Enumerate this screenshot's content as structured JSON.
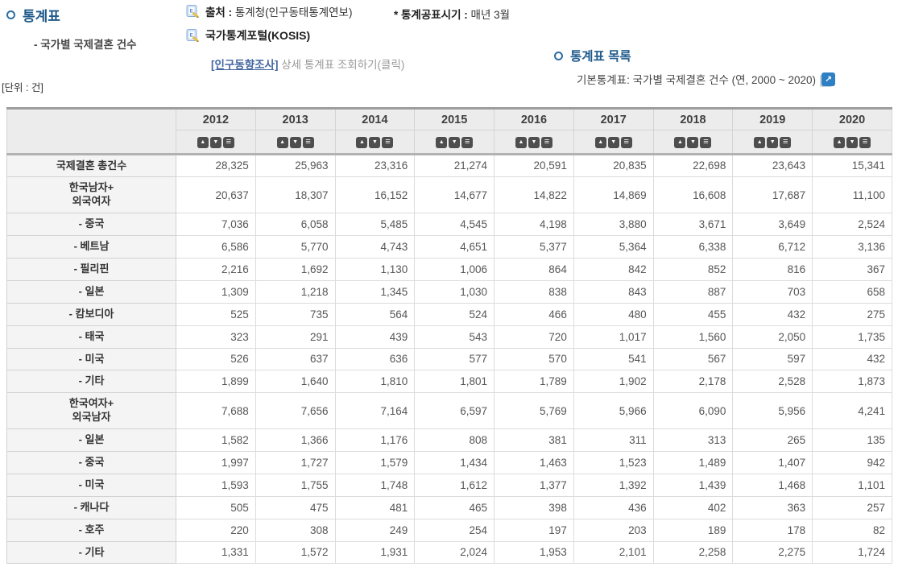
{
  "header": {
    "left": {
      "title": "통계표",
      "subtitle": "- 국가별 국제결혼 건수"
    },
    "source": {
      "label": "출처 :",
      "value": "통계청(인구동태통계연보)"
    },
    "publish": {
      "label": "* 통계공표시기 :",
      "value": "매년 3월"
    },
    "kosis_label": "국가통계포털(KOSIS)",
    "survey": {
      "link": "[인구동향조사]",
      "rest": " 상세 통계표 조회하기(클릭)"
    },
    "right": {
      "title": "통계표 목록",
      "item": "기본통계표: 국가별 국제결혼 건수 (연, 2000 ~ 2020)"
    },
    "unit": "[단위 : 건]"
  },
  "icons": {
    "doc_edit": "document-edit-icon",
    "external_link": "external-link-icon",
    "sort_asc": "▲",
    "sort_desc": "▼",
    "sort_menu": "≡"
  },
  "colors": {
    "heading_blue": "#1e5a8b",
    "link_blue": "#43679f",
    "icon_blue": "#2e80c4",
    "sort_button_dark": "#4e4e4e",
    "header_bg": "#ececec",
    "label_bg": "#f4f4f4"
  },
  "table": {
    "years": [
      "2012",
      "2013",
      "2014",
      "2015",
      "2016",
      "2017",
      "2018",
      "2019",
      "2020"
    ],
    "rows": [
      {
        "label": "국제결혼 총건수",
        "values": [
          "28,325",
          "25,963",
          "23,316",
          "21,274",
          "20,591",
          "20,835",
          "22,698",
          "23,643",
          "15,341"
        ]
      },
      {
        "label": "한국남자+\n외국여자",
        "values": [
          "20,637",
          "18,307",
          "16,152",
          "14,677",
          "14,822",
          "14,869",
          "16,608",
          "17,687",
          "11,100"
        ]
      },
      {
        "label": "- 중국",
        "values": [
          "7,036",
          "6,058",
          "5,485",
          "4,545",
          "4,198",
          "3,880",
          "3,671",
          "3,649",
          "2,524"
        ]
      },
      {
        "label": "- 베트남",
        "values": [
          "6,586",
          "5,770",
          "4,743",
          "4,651",
          "5,377",
          "5,364",
          "6,338",
          "6,712",
          "3,136"
        ]
      },
      {
        "label": "- 필리핀",
        "values": [
          "2,216",
          "1,692",
          "1,130",
          "1,006",
          "864",
          "842",
          "852",
          "816",
          "367"
        ]
      },
      {
        "label": "- 일본",
        "values": [
          "1,309",
          "1,218",
          "1,345",
          "1,030",
          "838",
          "843",
          "887",
          "703",
          "658"
        ]
      },
      {
        "label": "- 캄보디아",
        "values": [
          "525",
          "735",
          "564",
          "524",
          "466",
          "480",
          "455",
          "432",
          "275"
        ]
      },
      {
        "label": "- 태국",
        "values": [
          "323",
          "291",
          "439",
          "543",
          "720",
          "1,017",
          "1,560",
          "2,050",
          "1,735"
        ]
      },
      {
        "label": "- 미국",
        "values": [
          "526",
          "637",
          "636",
          "577",
          "570",
          "541",
          "567",
          "597",
          "432"
        ]
      },
      {
        "label": "- 기타",
        "values": [
          "1,899",
          "1,640",
          "1,810",
          "1,801",
          "1,789",
          "1,902",
          "2,178",
          "2,528",
          "1,873"
        ]
      },
      {
        "label": "한국여자+\n외국남자",
        "values": [
          "7,688",
          "7,656",
          "7,164",
          "6,597",
          "5,769",
          "5,966",
          "6,090",
          "5,956",
          "4,241"
        ]
      },
      {
        "label": "- 일본",
        "values": [
          "1,582",
          "1,366",
          "1,176",
          "808",
          "381",
          "311",
          "313",
          "265",
          "135"
        ]
      },
      {
        "label": "- 중국",
        "values": [
          "1,997",
          "1,727",
          "1,579",
          "1,434",
          "1,463",
          "1,523",
          "1,489",
          "1,407",
          "942"
        ]
      },
      {
        "label": "- 미국",
        "values": [
          "1,593",
          "1,755",
          "1,748",
          "1,612",
          "1,377",
          "1,392",
          "1,439",
          "1,468",
          "1,101"
        ]
      },
      {
        "label": "- 캐나다",
        "values": [
          "505",
          "475",
          "481",
          "465",
          "398",
          "436",
          "402",
          "363",
          "257"
        ]
      },
      {
        "label": "- 호주",
        "values": [
          "220",
          "308",
          "249",
          "254",
          "197",
          "203",
          "189",
          "178",
          "82"
        ]
      },
      {
        "label": "- 기타",
        "values": [
          "1,331",
          "1,572",
          "1,931",
          "2,024",
          "1,953",
          "2,101",
          "2,258",
          "2,275",
          "1,724"
        ]
      }
    ]
  }
}
